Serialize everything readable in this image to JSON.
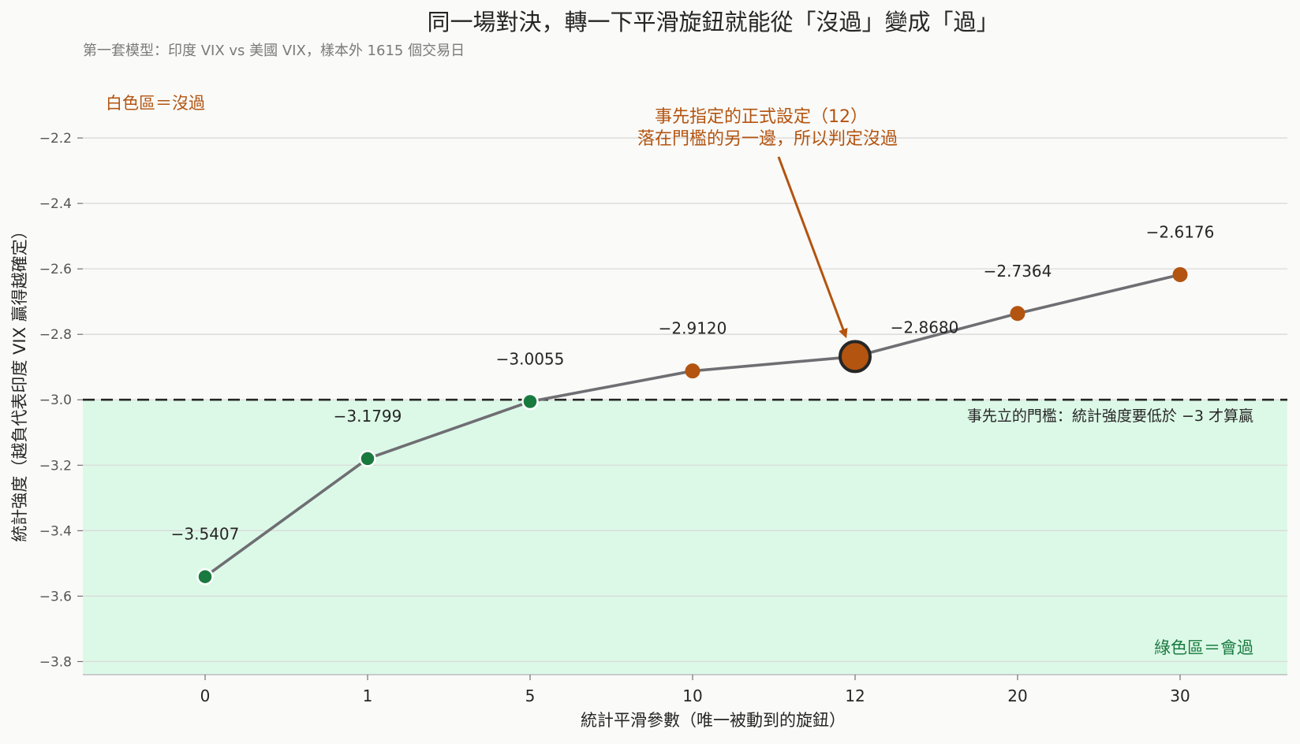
{
  "chart_data": {
    "type": "line",
    "title": "同一場對決，轉一下平滑旋鈕就能從「沒過」變成「過」",
    "subtitle": "第一套模型：印度 VIX vs 美國 VIX，樣本外 1615 個交易日",
    "xlabel": "統計平滑參數（唯一被動到的旋鈕）",
    "ylabel": "統計強度（越負代表印度 VIX 贏得越確定）",
    "categories": [
      "0",
      "1",
      "5",
      "10",
      "12",
      "20",
      "30"
    ],
    "values": [
      -3.5407,
      -3.1799,
      -3.0055,
      -2.912,
      -2.868,
      -2.7364,
      -2.6176
    ],
    "value_labels": [
      "−3.5407",
      "−3.1799",
      "−3.0055",
      "−2.9120",
      "−2.8680",
      "−2.7364",
      "−2.6176"
    ],
    "ylim": [
      -3.84,
      -2.0
    ],
    "yticks": [
      -3.8,
      -3.6,
      -3.4,
      -3.2,
      -3.0,
      -2.8,
      -2.6,
      -2.4,
      -2.2
    ],
    "ytick_labels": [
      "−3.8",
      "−3.6",
      "−3.4",
      "−3.2",
      "−3.0",
      "−2.8",
      "−2.6",
      "−2.4",
      "−2.2"
    ],
    "threshold": -3.0,
    "highlight_index": 4,
    "grid": "horizontal",
    "annotations": {
      "white_zone": "白色區＝沒過",
      "green_zone": "綠色區＝會過",
      "threshold_note": "事先立的門檻：統計強度要低於 −3 才算贏",
      "highlight_line1": "事先指定的正式設定（12）",
      "highlight_line2": "落在門檻的另一邊，所以判定沒過"
    },
    "colors": {
      "pass": "#197a3f",
      "fail": "#b35410",
      "line": "#6e6e73",
      "green_zone": "#dcf9e7",
      "threshold": "#262626",
      "grid": "#d9d9d9",
      "background": "#fafaf8"
    }
  }
}
